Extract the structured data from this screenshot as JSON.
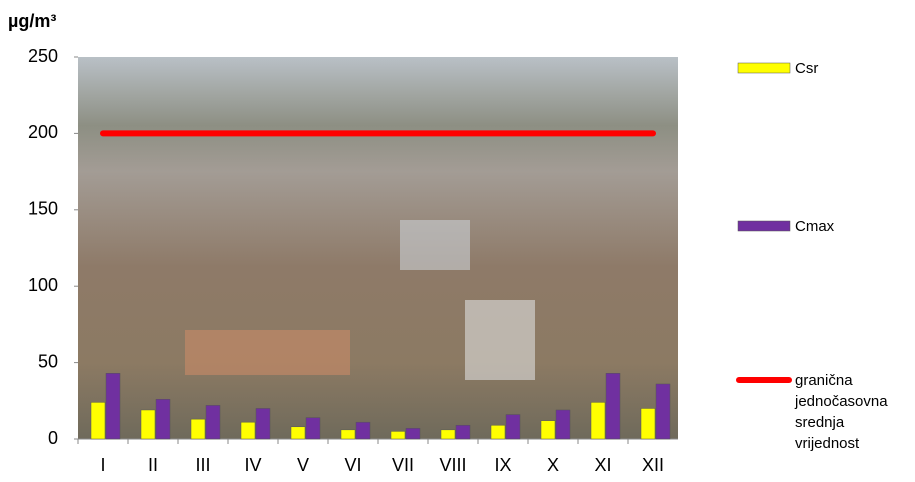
{
  "chart_data": {
    "type": "bar",
    "y_label": "µg/m³",
    "categories": [
      "I",
      "II",
      "III",
      "IV",
      "V",
      "VI",
      "VII",
      "VIII",
      "IX",
      "X",
      "XI",
      "XII"
    ],
    "series": [
      {
        "name": "Csr",
        "color": "#ffff00",
        "values": [
          24,
          19,
          13,
          11,
          8,
          6,
          5,
          6,
          9,
          12,
          24,
          20
        ]
      },
      {
        "name": "Cmax",
        "color": "#7030a0",
        "values": [
          43,
          26,
          22,
          20,
          14,
          11,
          7,
          9,
          16,
          19,
          43,
          36
        ]
      },
      {
        "name": "granična jednočasovna srednja vrijednost",
        "color": "#ff0000",
        "type": "line",
        "values": [
          200,
          200,
          200,
          200,
          200,
          200,
          200,
          200,
          200,
          200,
          200,
          200
        ]
      }
    ],
    "ylim": [
      0,
      250
    ],
    "yticks": [
      0,
      50,
      100,
      150,
      200,
      250
    ]
  }
}
